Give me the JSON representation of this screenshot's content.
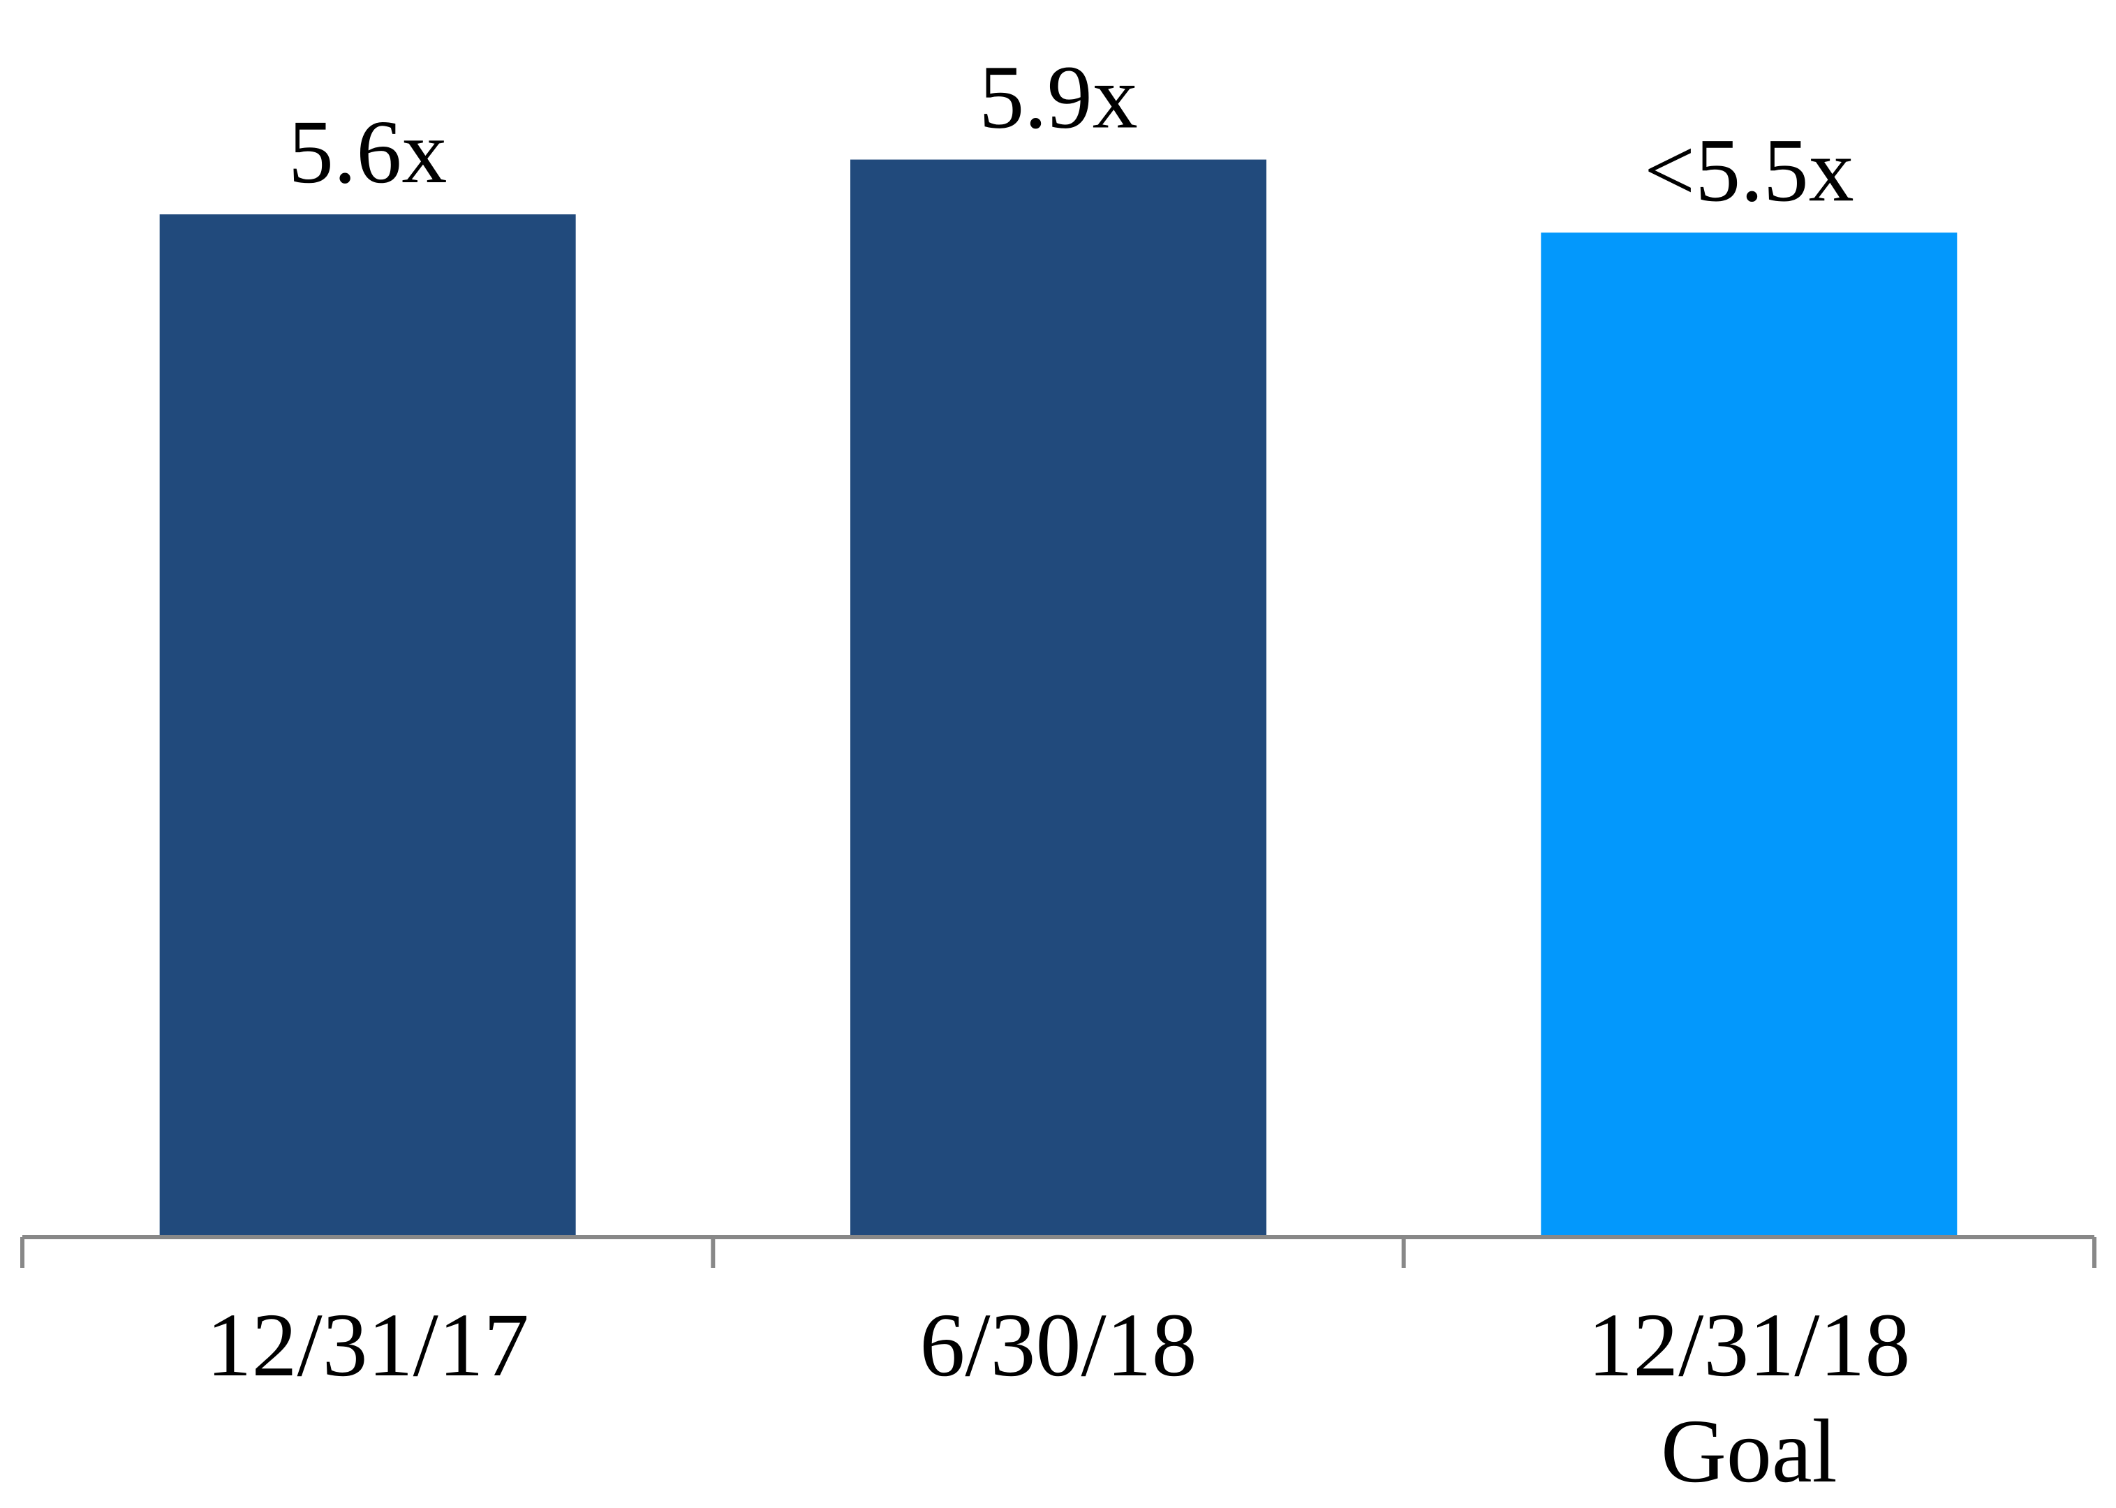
{
  "chart_data": {
    "type": "bar",
    "categories": [
      [
        "12/31/17"
      ],
      [
        "6/30/18"
      ],
      [
        "12/31/18",
        "Goal"
      ]
    ],
    "values": [
      5.6,
      5.9,
      5.5
    ],
    "data_labels": [
      "5.6x",
      "5.9x",
      "<5.5x"
    ],
    "bar_colors": [
      "#214A7C",
      "#214A7C",
      "#0398FC"
    ],
    "axis_color": "#888888",
    "ylim": [
      0,
      6.25
    ],
    "grid": false,
    "legend": "none",
    "title": "",
    "xlabel": "",
    "ylabel": ""
  }
}
